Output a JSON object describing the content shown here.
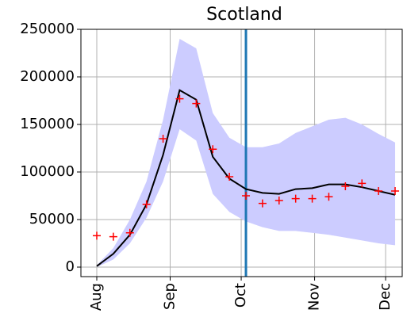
{
  "chart_data": {
    "type": "line",
    "title": "Scotland",
    "x": [
      0,
      7,
      14,
      21,
      28,
      35,
      42,
      49,
      56,
      63,
      70,
      77,
      84,
      91,
      98,
      105,
      112,
      119,
      126
    ],
    "series": [
      {
        "color": "#000000",
        "values": [
          1000,
          14000,
          34000,
          66000,
          118000,
          186000,
          176000,
          116000,
          93000,
          82000,
          78000,
          77000,
          82000,
          83000,
          87000,
          87000,
          84000,
          80000,
          76000
        ]
      }
    ],
    "observed": {
      "color": "#ff0000",
      "values": [
        33000,
        32000,
        36000,
        66000,
        135000,
        177000,
        172000,
        124000,
        95000,
        75000,
        67000,
        70000,
        72000,
        72000,
        74000,
        85000,
        88000,
        80000,
        80000
      ]
    },
    "band": {
      "color": "#ccccff",
      "lower": [
        0,
        8000,
        25000,
        52000,
        90000,
        145000,
        133000,
        77000,
        58000,
        48000,
        42000,
        38000,
        38000,
        36000,
        34000,
        31000,
        28000,
        25000,
        23000
      ],
      "upper": [
        2000,
        20000,
        50000,
        90000,
        155000,
        240000,
        230000,
        162000,
        136000,
        126000,
        126000,
        130000,
        141000,
        148000,
        155000,
        157000,
        150000,
        140000,
        131000
      ]
    },
    "vline": {
      "x": 63,
      "color": "#1f77b4"
    },
    "xlim": [
      -6.7,
      129
    ],
    "xticks": [
      {
        "value": 0,
        "label": "Aug"
      },
      {
        "value": 31,
        "label": "Sep"
      },
      {
        "value": 61,
        "label": "Oct"
      },
      {
        "value": 92,
        "label": "Nov"
      },
      {
        "value": 122,
        "label": "Dec"
      }
    ],
    "ylim": [
      -10000,
      250000
    ],
    "yticks": [
      0,
      50000,
      100000,
      150000,
      200000,
      250000
    ],
    "grid": true
  }
}
